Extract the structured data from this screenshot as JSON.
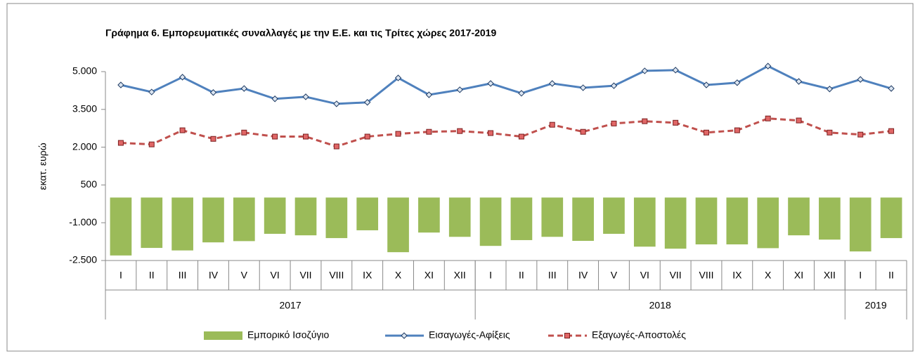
{
  "chart_data": {
    "type": "combo",
    "title": "Γράφημα 6. Εμπορευματικές συναλλαγές με την Ε.Ε. και τις Τρίτες χώρες  2017-2019",
    "y_label": "εκατ. ευρώ",
    "categories": [
      "I",
      "II",
      "III",
      "IV",
      "V",
      "VI",
      "VII",
      "VIII",
      "IX",
      "X",
      "XI",
      "XII",
      "I",
      "II",
      "III",
      "IV",
      "V",
      "VI",
      "VII",
      "VIII",
      "IX",
      "X",
      "XI",
      "XII",
      "I",
      "II"
    ],
    "year_groups": [
      {
        "label": "2017",
        "months": 12
      },
      {
        "label": "2018",
        "months": 12
      },
      {
        "label": "2019",
        "months": 2
      }
    ],
    "ylim": [
      -2500,
      5000
    ],
    "yticks": [
      {
        "value": 5000,
        "label": "5.000"
      },
      {
        "value": 3500,
        "label": "3.500"
      },
      {
        "value": 2000,
        "label": "2.000"
      },
      500,
      {
        "value": -1000,
        "label": "-1.000"
      },
      {
        "value": -2500,
        "label": "-2.500"
      }
    ],
    "grid": false,
    "legend": "bottom",
    "series": [
      {
        "name": "Εμπορικό Ισοζύγιο",
        "type": "bar",
        "color": "#9bbb59",
        "values": [
          -2300,
          -2000,
          -2100,
          -1780,
          -1730,
          -1440,
          -1500,
          -1610,
          -1300,
          -2170,
          -1390,
          -1560,
          -1920,
          -1690,
          -1560,
          -1720,
          -1440,
          -1950,
          -2030,
          -1860,
          -1860,
          -2010,
          -1500,
          -1670,
          -2140,
          -1610
        ]
      },
      {
        "name": "Εισαγωγές-Αφίξεις",
        "type": "line",
        "color": "#4f81bd",
        "values": [
          4470,
          4190,
          4780,
          4170,
          4330,
          3920,
          4000,
          3720,
          3780,
          4750,
          4080,
          4280,
          4530,
          4140,
          4530,
          4360,
          4440,
          5030,
          5060,
          4470,
          4560,
          5220,
          4610,
          4310,
          4690,
          4330
        ]
      },
      {
        "name": "Εξαγωγές-Αποστολές",
        "type": "dashed-line",
        "color": "#c0504d",
        "values": [
          2170,
          2110,
          2670,
          2330,
          2580,
          2420,
          2420,
          2030,
          2420,
          2530,
          2610,
          2640,
          2560,
          2420,
          2890,
          2610,
          2940,
          3030,
          2970,
          2580,
          2670,
          3140,
          3060,
          2580,
          2500,
          2640
        ]
      }
    ]
  }
}
